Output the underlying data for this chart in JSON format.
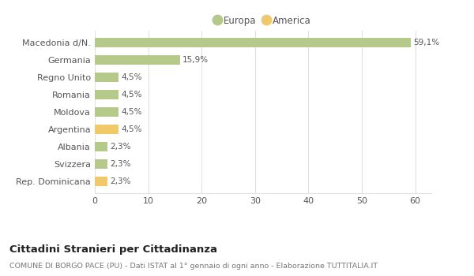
{
  "categories": [
    "Macedonia d/N.",
    "Germania",
    "Regno Unito",
    "Romania",
    "Moldova",
    "Argentina",
    "Albania",
    "Svizzera",
    "Rep. Dominicana"
  ],
  "values": [
    59.1,
    15.9,
    4.5,
    4.5,
    4.5,
    4.5,
    2.3,
    2.3,
    2.3
  ],
  "colors": [
    "#b5c98a",
    "#b5c98a",
    "#b5c98a",
    "#b5c98a",
    "#b5c98a",
    "#f0c96a",
    "#b5c98a",
    "#b5c98a",
    "#f0c96a"
  ],
  "labels": [
    "59,1%",
    "15,9%",
    "4,5%",
    "4,5%",
    "4,5%",
    "4,5%",
    "2,3%",
    "2,3%",
    "2,3%"
  ],
  "europa_color": "#b5c98a",
  "america_color": "#f0c96a",
  "legend_europa": "Europa",
  "legend_america": "America",
  "xlim": [
    0,
    63
  ],
  "xticks": [
    0,
    10,
    20,
    30,
    40,
    50,
    60
  ],
  "title": "Cittadini Stranieri per Cittadinanza",
  "subtitle": "COMUNE DI BORGO PACE (PU) - Dati ISTAT al 1° gennaio di ogni anno - Elaborazione TUTTITALIA.IT",
  "background_color": "#ffffff",
  "grid_color": "#e0e0e0",
  "bar_height": 0.55
}
